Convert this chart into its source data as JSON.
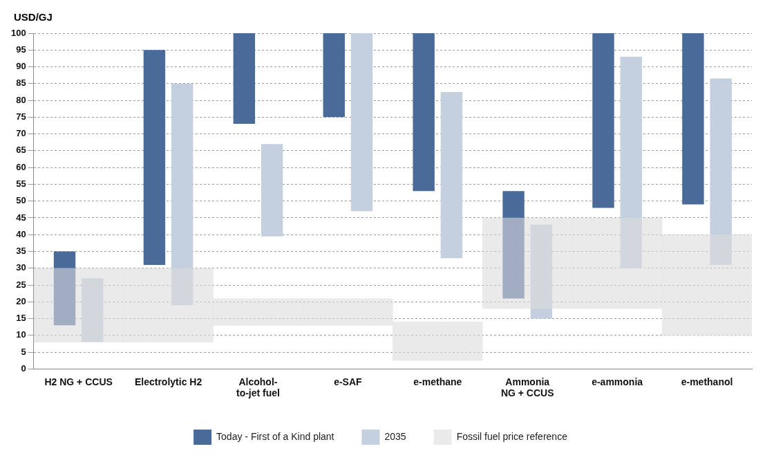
{
  "chart_data": {
    "type": "bar",
    "ylabel": "USD/GJ",
    "categories": [
      "H2 NG + CCUS",
      "Electrolytic H2",
      "Alcohol-\nto-jet fuel",
      "e-SAF",
      "e-methane",
      "Ammonia\nNG + CCUS",
      "e-ammonia",
      "e-methanol"
    ],
    "series": [
      {
        "name": "Today - First of a Kind plant",
        "color": "#4a6a9a",
        "base": [
          13,
          31,
          73,
          75,
          53,
          21,
          48,
          49
        ],
        "values": [
          22,
          64,
          27,
          25,
          47,
          32,
          52,
          51
        ]
      },
      {
        "name": "2035",
        "color": "#c4cfe0",
        "base": [
          8,
          19,
          39.5,
          47,
          33,
          15,
          30,
          31
        ],
        "values": [
          19,
          66,
          27.5,
          53,
          49.5,
          28,
          63,
          55.5
        ]
      },
      {
        "name": "Fossil fuel price reference",
        "color": "#dcdcdc",
        "base": [
          8,
          8,
          13,
          13,
          2.5,
          18,
          18,
          10
        ],
        "values": [
          22,
          22,
          8,
          8,
          11.5,
          27,
          27,
          30
        ]
      }
    ],
    "ylim": [
      0,
      100
    ],
    "yticks": [
      0,
      5,
      10,
      15,
      20,
      25,
      30,
      35,
      40,
      45,
      50,
      55,
      60,
      65,
      70,
      75,
      80,
      85,
      90,
      95,
      100
    ],
    "grid": "y",
    "legend": "bottom"
  }
}
